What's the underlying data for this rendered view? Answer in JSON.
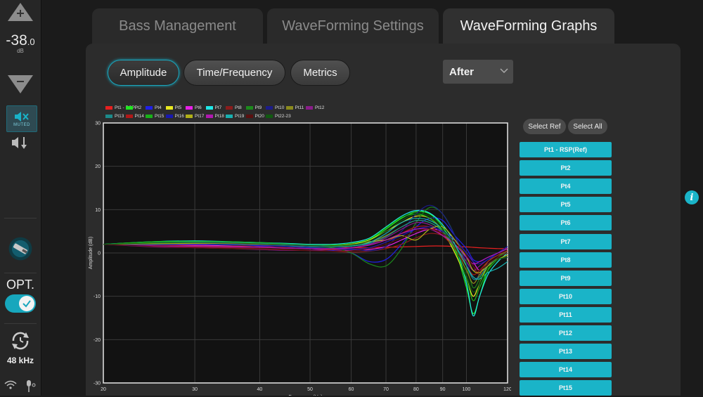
{
  "rail": {
    "volume_value": "-38",
    "volume_decimal": ".0",
    "volume_unit": "dB",
    "mute_label": "MUTED",
    "opt_label": "OPT.",
    "sample_rate": "48 kHz"
  },
  "tabs": [
    {
      "label": "Bass Management",
      "active": false
    },
    {
      "label": "WaveForming Settings",
      "active": false
    },
    {
      "label": "WaveForming Graphs",
      "active": true
    }
  ],
  "view_buttons": [
    {
      "label": "Amplitude",
      "active": true
    },
    {
      "label": "Time/Frequency",
      "active": false
    },
    {
      "label": "Metrics",
      "active": false
    }
  ],
  "dropdown": {
    "selected": "After"
  },
  "right_panel": {
    "select_ref_label": "Select Ref",
    "select_all_label": "Select All",
    "points": [
      "Pt1 - RSP(Ref)",
      "Pt2",
      "Pt4",
      "Pt5",
      "Pt6",
      "Pt7",
      "Pt8",
      "Pt9",
      "Pt10",
      "Pt11",
      "Pt12",
      "Pt13",
      "Pt14",
      "Pt15"
    ]
  },
  "accent_color": "#1ab4c8",
  "chart_data": {
    "type": "line",
    "xlabel": "Frequency (Hz)",
    "ylabel": "Amplitude (dB)",
    "x_scale": "log",
    "xlim": [
      20,
      120
    ],
    "ylim": [
      -30,
      30
    ],
    "x_ticks": [
      20,
      30,
      40,
      50,
      60,
      70,
      80,
      90,
      100,
      120
    ],
    "y_ticks": [
      -30,
      -20,
      -10,
      0,
      10,
      20,
      30
    ],
    "grid": true,
    "legend_position": "top-left",
    "x": [
      20,
      25,
      30,
      35,
      40,
      45,
      50,
      55,
      60,
      65,
      70,
      75,
      80,
      85,
      90,
      95,
      100,
      103,
      106,
      110,
      115,
      120
    ],
    "series": [
      {
        "name": "Pt1 - RSP",
        "color": "#e82020",
        "values": [
          2.0,
          1.8,
          2.0,
          1.9,
          1.7,
          1.6,
          1.6,
          1.4,
          1.2,
          1.2,
          1.3,
          1.4,
          1.5,
          1.6,
          1.6,
          1.5,
          1.4,
          1.3,
          1.2,
          1.1,
          1.0,
          1.0
        ]
      },
      {
        "name": "Pt2",
        "color": "#20e820",
        "values": [
          2.0,
          2.4,
          2.6,
          2.5,
          2.2,
          2.0,
          1.8,
          1.8,
          2.0,
          3.0,
          5.5,
          8.0,
          9.5,
          9.0,
          6.0,
          1.0,
          -8.0,
          -14.0,
          -10.0,
          -4.0,
          -1.0,
          0.5
        ]
      },
      {
        "name": "Pt4",
        "color": "#2020e8",
        "values": [
          2.0,
          2.0,
          2.2,
          2.1,
          1.6,
          1.2,
          1.0,
          0.6,
          0.0,
          -2.0,
          -1.5,
          2.0,
          6.0,
          8.0,
          7.5,
          4.0,
          1.0,
          -1.5,
          -2.0,
          -1.0,
          0.0,
          1.0
        ]
      },
      {
        "name": "Pt5",
        "color": "#e8e820",
        "values": [
          2.0,
          2.2,
          2.4,
          2.3,
          2.1,
          1.8,
          1.6,
          1.6,
          2.0,
          3.0,
          5.0,
          7.0,
          8.5,
          8.0,
          5.0,
          0.0,
          -6.0,
          -10.0,
          -7.0,
          -3.0,
          -1.0,
          0.0
        ]
      },
      {
        "name": "Pt6",
        "color": "#e820e8",
        "values": [
          2.0,
          1.8,
          1.8,
          1.6,
          1.4,
          1.2,
          1.0,
          0.8,
          0.6,
          0.8,
          1.5,
          3.0,
          4.5,
          5.5,
          5.0,
          3.0,
          0.0,
          -2.0,
          -4.0,
          -2.5,
          -1.0,
          0.5
        ]
      },
      {
        "name": "Pt7",
        "color": "#20e8e8",
        "values": [
          2.0,
          2.6,
          2.8,
          2.6,
          2.4,
          2.2,
          2.0,
          2.0,
          2.4,
          3.4,
          6.0,
          8.5,
          9.8,
          9.2,
          6.5,
          2.0,
          -7.0,
          -14.5,
          -10.0,
          -5.0,
          -2.0,
          0.0
        ]
      },
      {
        "name": "Pt8",
        "color": "#8a1c1c",
        "values": [
          2.0,
          1.6,
          1.4,
          1.2,
          1.0,
          0.8,
          0.6,
          0.4,
          0.2,
          0.4,
          1.0,
          2.0,
          3.5,
          4.5,
          4.0,
          2.0,
          -1.0,
          -3.0,
          -5.0,
          -3.0,
          -1.0,
          0.0
        ]
      },
      {
        "name": "Pt9",
        "color": "#1c8a1c",
        "values": [
          2.0,
          2.4,
          2.6,
          2.5,
          2.2,
          2.0,
          1.6,
          1.2,
          0.0,
          -2.5,
          -3.0,
          1.0,
          7.0,
          10.5,
          9.0,
          4.0,
          -3.0,
          -8.0,
          -6.0,
          -3.0,
          -1.0,
          0.5
        ]
      },
      {
        "name": "Pt10",
        "color": "#1c1c8a",
        "values": [
          2.0,
          2.0,
          2.2,
          2.2,
          2.0,
          1.8,
          1.6,
          1.4,
          1.0,
          0.5,
          1.5,
          5.0,
          9.0,
          11.0,
          9.0,
          4.0,
          -2.0,
          -6.0,
          -5.0,
          -2.0,
          0.0,
          1.0
        ]
      },
      {
        "name": "Pt11",
        "color": "#8a8a1c",
        "values": [
          2.0,
          2.2,
          2.4,
          2.4,
          2.2,
          2.0,
          1.8,
          1.8,
          2.0,
          2.5,
          4.0,
          6.0,
          7.5,
          7.0,
          5.0,
          1.0,
          -4.0,
          -7.0,
          -5.0,
          -2.0,
          -0.5,
          0.5
        ]
      },
      {
        "name": "Pt12",
        "color": "#8a1c8a",
        "values": [
          2.0,
          1.4,
          1.2,
          1.0,
          0.8,
          0.6,
          0.6,
          0.8,
          1.2,
          2.0,
          3.5,
          5.5,
          7.0,
          6.5,
          4.5,
          1.5,
          -2.0,
          -4.0,
          -3.0,
          -1.5,
          0.0,
          1.0
        ]
      },
      {
        "name": "Pt13",
        "color": "#1c8a8a",
        "values": [
          2.0,
          2.0,
          2.0,
          1.9,
          1.8,
          1.6,
          1.4,
          1.4,
          1.6,
          2.2,
          3.8,
          6.0,
          7.5,
          7.0,
          5.0,
          1.5,
          -3.0,
          -6.0,
          -5.5,
          -3.0,
          -1.5,
          -1.0
        ]
      },
      {
        "name": "Pt14",
        "color": "#b01818",
        "values": [
          2.0,
          1.8,
          1.6,
          1.5,
          1.4,
          1.2,
          1.0,
          0.8,
          0.8,
          1.2,
          2.5,
          4.5,
          6.0,
          6.0,
          4.0,
          1.0,
          -3.0,
          -5.0,
          -4.0,
          -2.0,
          -0.5,
          0.5
        ]
      },
      {
        "name": "Pt15",
        "color": "#18b018",
        "values": [
          2.0,
          2.6,
          2.7,
          2.6,
          2.4,
          2.1,
          1.9,
          1.8,
          2.2,
          3.2,
          5.8,
          8.2,
          9.0,
          8.0,
          5.0,
          0.5,
          -6.0,
          -11.0,
          -8.0,
          -4.0,
          -1.5,
          -0.5
        ]
      },
      {
        "name": "Pt16",
        "color": "#1818b0",
        "values": [
          2.0,
          1.9,
          2.0,
          2.0,
          1.8,
          1.5,
          1.2,
          1.0,
          0.8,
          1.2,
          2.5,
          4.0,
          5.5,
          6.0,
          5.0,
          3.0,
          0.0,
          -2.0,
          -2.5,
          -1.5,
          0.0,
          1.5
        ]
      },
      {
        "name": "Pt17",
        "color": "#b0b018",
        "values": [
          2.0,
          2.1,
          2.2,
          2.2,
          2.0,
          1.9,
          1.7,
          1.6,
          1.8,
          2.6,
          3.0,
          4.0,
          3.0,
          5.5,
          6.0,
          3.0,
          -1.0,
          -4.0,
          -4.5,
          -3.0,
          -1.5,
          -0.5
        ]
      },
      {
        "name": "Pt18",
        "color": "#b018b0",
        "values": [
          2.0,
          1.6,
          1.5,
          1.4,
          1.3,
          1.1,
          1.0,
          1.0,
          1.2,
          1.8,
          3.0,
          4.5,
          5.5,
          5.5,
          4.0,
          2.0,
          -1.0,
          -2.5,
          -2.0,
          -1.0,
          0.0,
          1.0
        ]
      },
      {
        "name": "Pt19",
        "color": "#18b0b0",
        "values": [
          2.0,
          2.3,
          2.5,
          2.4,
          2.2,
          2.0,
          1.8,
          1.6,
          1.6,
          2.4,
          4.5,
          7.0,
          8.0,
          7.5,
          5.5,
          2.0,
          -3.0,
          -5.5,
          -6.0,
          -4.5,
          -3.5,
          -2.0
        ]
      },
      {
        "name": "Pt20",
        "color": "#5a1010",
        "values": [
          2.0,
          1.5,
          1.2,
          1.0,
          0.9,
          0.7,
          0.5,
          0.4,
          0.5,
          1.0,
          2.0,
          3.5,
          5.0,
          5.5,
          4.5,
          2.5,
          -0.5,
          -3.0,
          -4.0,
          -2.5,
          -1.0,
          0.0
        ]
      },
      {
        "name": "Pt22-23",
        "color": "#105a10",
        "values": [
          2.0,
          2.3,
          2.4,
          2.3,
          2.1,
          1.9,
          1.7,
          1.6,
          1.8,
          2.8,
          5.0,
          7.5,
          9.0,
          8.5,
          5.5,
          1.5,
          -5.0,
          -9.0,
          -7.0,
          -3.5,
          -1.5,
          -1.0
        ]
      }
    ]
  }
}
